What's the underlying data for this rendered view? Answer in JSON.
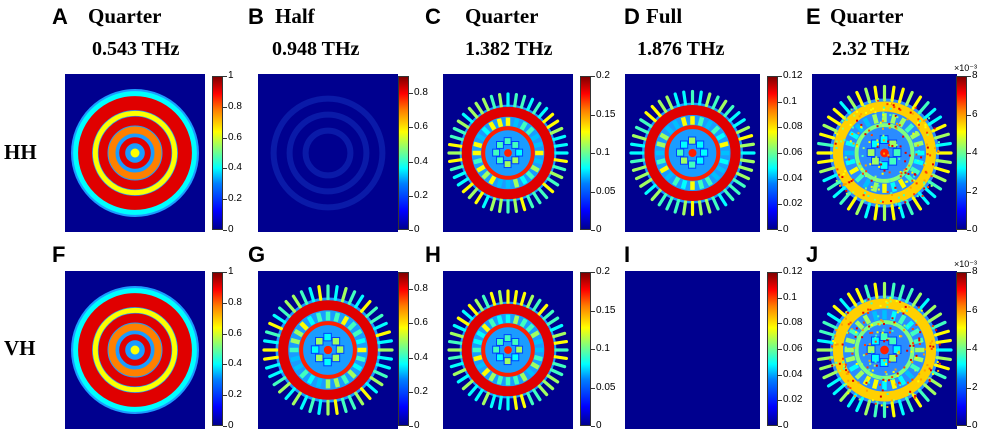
{
  "row_labels": [
    "HH",
    "VH"
  ],
  "columns": [
    {
      "mode": "Quarter",
      "frequency": "0.543 THz",
      "cbar_ticks": [
        "1",
        "0.8",
        "0.6",
        "0.4",
        "0.2",
        "0"
      ],
      "cbar_top_fraction": 1.0,
      "exponent": ""
    },
    {
      "mode": "Half",
      "frequency": "0.948 THz",
      "cbar_ticks": [
        "0.8",
        "0.6",
        "0.4",
        "0.2",
        "0"
      ],
      "cbar_top_fraction": 0.889,
      "exponent": ""
    },
    {
      "mode": "Quarter",
      "frequency": "1.382 THz",
      "cbar_ticks": [
        "0.2",
        "0.15",
        "0.1",
        "0.05",
        "0"
      ],
      "cbar_top_fraction": 1.0,
      "exponent": ""
    },
    {
      "mode": "Full",
      "frequency": "1.876 THz",
      "cbar_ticks": [
        "0.12",
        "0.1",
        "0.08",
        "0.06",
        "0.04",
        "0.02",
        "0"
      ],
      "cbar_top_fraction": 1.0,
      "exponent": ""
    },
    {
      "mode": "Quarter",
      "frequency": "2.32 THz",
      "cbar_ticks": [
        "8",
        "6",
        "4",
        "2",
        "0"
      ],
      "cbar_top_fraction": 1.0,
      "exponent": "×10⁻³"
    }
  ],
  "panels": [
    {
      "letter": "A",
      "row": 0,
      "col": 0,
      "pattern": "smooth"
    },
    {
      "letter": "B",
      "row": 0,
      "col": 1,
      "pattern": "faint"
    },
    {
      "letter": "C",
      "row": 0,
      "col": 2,
      "pattern": "detailed"
    },
    {
      "letter": "D",
      "row": 0,
      "col": 3,
      "pattern": "detailed"
    },
    {
      "letter": "E",
      "row": 0,
      "col": 4,
      "pattern": "noisy"
    },
    {
      "letter": "F",
      "row": 1,
      "col": 0,
      "pattern": "smooth"
    },
    {
      "letter": "G",
      "row": 1,
      "col": 1,
      "pattern": "detailed"
    },
    {
      "letter": "H",
      "row": 1,
      "col": 2,
      "pattern": "detailed"
    },
    {
      "letter": "I",
      "row": 1,
      "col": 3,
      "pattern": "empty"
    },
    {
      "letter": "J",
      "row": 1,
      "col": 4,
      "pattern": "noisy"
    }
  ],
  "colors": {
    "background": "#00008f",
    "low": "#0000ff",
    "mid": "#00ffff",
    "high": "#ff0000",
    "peak": "#800000"
  }
}
